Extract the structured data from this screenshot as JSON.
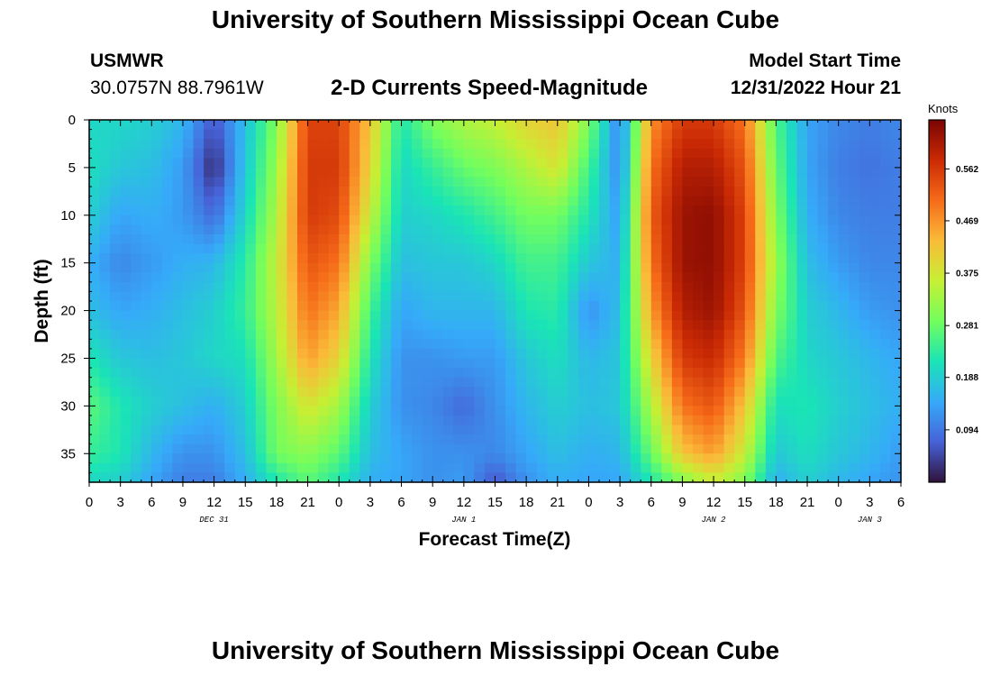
{
  "page": {
    "title": "University of Southern Mississippi Ocean Cube",
    "footer_title": "University of Southern Mississippi Ocean Cube",
    "station_id": "USMWR",
    "coordinates": "30.0757N  88.7961W",
    "subtitle": "2-D Currents Speed-Magnitude",
    "model_start_label": "Model Start Time",
    "model_start_value": "12/31/2022 Hour 21"
  },
  "chart_data": {
    "type": "heatmap",
    "title": "2-D Currents Speed-Magnitude",
    "xlabel": "Forecast Time(Z)",
    "ylabel": "Depth (ft)",
    "colorbar_title": "Knots",
    "x_range_hours": [
      0,
      78
    ],
    "y_range_ft": [
      0,
      38
    ],
    "y_reversed": true,
    "x_tick_labels": [
      "0",
      "3",
      "6",
      "9",
      "12",
      "15",
      "18",
      "21",
      "0",
      "3",
      "6",
      "9",
      "12",
      "15",
      "18",
      "21",
      "0",
      "3",
      "6",
      "9",
      "12",
      "15",
      "18",
      "21",
      "0",
      "3",
      "6"
    ],
    "y_tick_values": [
      0,
      5,
      10,
      15,
      20,
      25,
      30,
      35
    ],
    "date_labels": [
      {
        "text": "DEC 31",
        "hour": 12
      },
      {
        "text": "JAN 1",
        "hour": 36
      },
      {
        "text": "JAN 2",
        "hour": 60
      },
      {
        "text": "JAN 3",
        "hour": 75
      }
    ],
    "colorbar_range": [
      0,
      0.65
    ],
    "colorbar_ticks": [
      "0.562",
      "0.469",
      "0.375",
      "0.281",
      "0.188",
      "0.094"
    ],
    "colorbar_tick_values": [
      0.562,
      0.469,
      0.375,
      0.281,
      0.188,
      0.094
    ],
    "colorscale": [
      "#30123b",
      "#4662d7",
      "#36aaf9",
      "#1ae4b6",
      "#72fe5e",
      "#c7ef34",
      "#fabb39",
      "#f66b19",
      "#ca2a04",
      "#7a0403"
    ],
    "depth_levels_ft": [
      0,
      5,
      10,
      15,
      20,
      25,
      30,
      35,
      38
    ],
    "speed_by_hour": [
      {
        "hour": 0,
        "values": [
          0.2,
          0.21,
          0.19,
          0.15,
          0.17,
          0.22,
          0.27,
          0.24,
          0.2
        ]
      },
      {
        "hour": 3,
        "values": [
          0.2,
          0.18,
          0.14,
          0.11,
          0.14,
          0.18,
          0.22,
          0.22,
          0.19
        ]
      },
      {
        "hour": 6,
        "values": [
          0.19,
          0.17,
          0.15,
          0.13,
          0.15,
          0.17,
          0.19,
          0.16,
          0.14
        ]
      },
      {
        "hour": 9,
        "values": [
          0.16,
          0.13,
          0.13,
          0.15,
          0.17,
          0.18,
          0.17,
          0.12,
          0.1
        ]
      },
      {
        "hour": 12,
        "values": [
          0.06,
          0.02,
          0.08,
          0.16,
          0.19,
          0.2,
          0.15,
          0.12,
          0.1
        ]
      },
      {
        "hour": 15,
        "values": [
          0.17,
          0.18,
          0.2,
          0.23,
          0.24,
          0.21,
          0.19,
          0.17,
          0.15
        ]
      },
      {
        "hour": 18,
        "values": [
          0.3,
          0.32,
          0.34,
          0.36,
          0.35,
          0.33,
          0.3,
          0.29,
          0.22
        ]
      },
      {
        "hour": 21,
        "values": [
          0.55,
          0.56,
          0.56,
          0.53,
          0.5,
          0.46,
          0.38,
          0.31,
          0.27
        ]
      },
      {
        "hour": 24,
        "values": [
          0.55,
          0.56,
          0.54,
          0.5,
          0.45,
          0.4,
          0.33,
          0.27,
          0.22
        ]
      },
      {
        "hour": 27,
        "values": [
          0.42,
          0.4,
          0.36,
          0.3,
          0.25,
          0.22,
          0.19,
          0.17,
          0.15
        ]
      },
      {
        "hour": 30,
        "values": [
          0.22,
          0.2,
          0.19,
          0.17,
          0.14,
          0.12,
          0.12,
          0.14,
          0.14
        ]
      },
      {
        "hour": 33,
        "values": [
          0.3,
          0.24,
          0.2,
          0.18,
          0.16,
          0.12,
          0.11,
          0.12,
          0.12
        ]
      },
      {
        "hour": 36,
        "values": [
          0.34,
          0.28,
          0.22,
          0.18,
          0.16,
          0.13,
          0.08,
          0.12,
          0.13
        ]
      },
      {
        "hour": 39,
        "values": [
          0.36,
          0.3,
          0.25,
          0.2,
          0.16,
          0.13,
          0.12,
          0.11,
          0.06
        ]
      },
      {
        "hour": 42,
        "values": [
          0.4,
          0.34,
          0.29,
          0.25,
          0.22,
          0.18,
          0.16,
          0.14,
          0.12
        ]
      },
      {
        "hour": 45,
        "values": [
          0.42,
          0.38,
          0.29,
          0.25,
          0.23,
          0.21,
          0.19,
          0.17,
          0.15
        ]
      },
      {
        "hour": 48,
        "values": [
          0.3,
          0.25,
          0.22,
          0.18,
          0.12,
          0.16,
          0.17,
          0.15,
          0.14
        ]
      },
      {
        "hour": 51,
        "values": [
          0.1,
          0.11,
          0.13,
          0.15,
          0.17,
          0.18,
          0.18,
          0.16,
          0.14
        ]
      },
      {
        "hour": 54,
        "values": [
          0.47,
          0.5,
          0.52,
          0.5,
          0.46,
          0.4,
          0.34,
          0.28,
          0.22
        ]
      },
      {
        "hour": 57,
        "values": [
          0.56,
          0.6,
          0.62,
          0.62,
          0.6,
          0.56,
          0.5,
          0.42,
          0.3
        ]
      },
      {
        "hour": 60,
        "values": [
          0.56,
          0.6,
          0.63,
          0.63,
          0.62,
          0.58,
          0.53,
          0.46,
          0.36
        ]
      },
      {
        "hour": 63,
        "values": [
          0.5,
          0.53,
          0.55,
          0.55,
          0.53,
          0.49,
          0.42,
          0.36,
          0.3
        ]
      },
      {
        "hour": 66,
        "values": [
          0.26,
          0.28,
          0.3,
          0.32,
          0.3,
          0.26,
          0.21,
          0.18,
          0.15
        ]
      },
      {
        "hour": 69,
        "values": [
          0.14,
          0.14,
          0.15,
          0.17,
          0.19,
          0.2,
          0.22,
          0.21,
          0.19
        ]
      },
      {
        "hour": 72,
        "values": [
          0.11,
          0.1,
          0.11,
          0.13,
          0.16,
          0.18,
          0.19,
          0.18,
          0.16
        ]
      },
      {
        "hour": 75,
        "values": [
          0.1,
          0.09,
          0.1,
          0.11,
          0.13,
          0.16,
          0.17,
          0.16,
          0.14
        ]
      },
      {
        "hour": 78,
        "values": [
          0.11,
          0.1,
          0.1,
          0.11,
          0.12,
          0.14,
          0.15,
          0.13,
          0.12
        ]
      }
    ]
  }
}
